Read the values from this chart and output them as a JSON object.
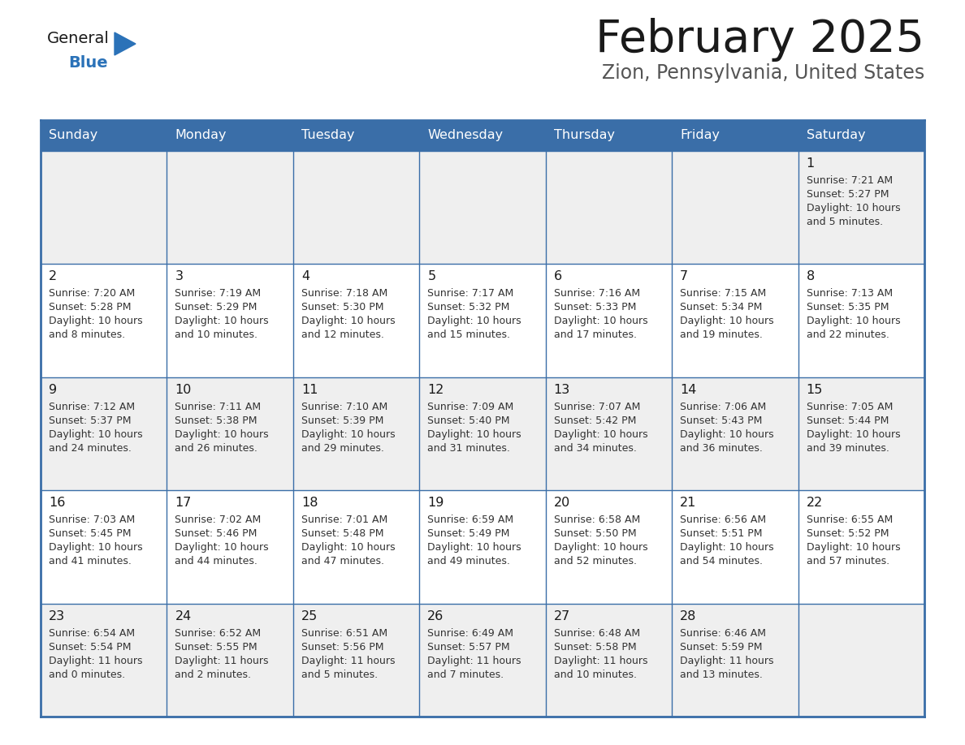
{
  "title": "February 2025",
  "subtitle": "Zion, Pennsylvania, United States",
  "days_of_week": [
    "Sunday",
    "Monday",
    "Tuesday",
    "Wednesday",
    "Thursday",
    "Friday",
    "Saturday"
  ],
  "header_bg": "#3a6ea8",
  "header_text": "#ffffff",
  "cell_bg": "#efefef",
  "cell_bg_alt": "#ffffff",
  "cell_border": "#3a6ea8",
  "cell_inner_border": "#3a6ea8",
  "title_color": "#1a1a1a",
  "subtitle_color": "#555555",
  "day_num_color": "#1a1a1a",
  "cell_text_color": "#333333",
  "logo_general_color": "#1a1a1a",
  "logo_blue_color": "#2b72b8",
  "weeks": [
    [
      {
        "day": null,
        "text": ""
      },
      {
        "day": null,
        "text": ""
      },
      {
        "day": null,
        "text": ""
      },
      {
        "day": null,
        "text": ""
      },
      {
        "day": null,
        "text": ""
      },
      {
        "day": null,
        "text": ""
      },
      {
        "day": 1,
        "sunrise": "Sunrise: 7:21 AM",
        "sunset": "Sunset: 5:27 PM",
        "daylight": "Daylight: 10 hours",
        "daylight2": "and 5 minutes."
      }
    ],
    [
      {
        "day": 2,
        "sunrise": "Sunrise: 7:20 AM",
        "sunset": "Sunset: 5:28 PM",
        "daylight": "Daylight: 10 hours",
        "daylight2": "and 8 minutes."
      },
      {
        "day": 3,
        "sunrise": "Sunrise: 7:19 AM",
        "sunset": "Sunset: 5:29 PM",
        "daylight": "Daylight: 10 hours",
        "daylight2": "and 10 minutes."
      },
      {
        "day": 4,
        "sunrise": "Sunrise: 7:18 AM",
        "sunset": "Sunset: 5:30 PM",
        "daylight": "Daylight: 10 hours",
        "daylight2": "and 12 minutes."
      },
      {
        "day": 5,
        "sunrise": "Sunrise: 7:17 AM",
        "sunset": "Sunset: 5:32 PM",
        "daylight": "Daylight: 10 hours",
        "daylight2": "and 15 minutes."
      },
      {
        "day": 6,
        "sunrise": "Sunrise: 7:16 AM",
        "sunset": "Sunset: 5:33 PM",
        "daylight": "Daylight: 10 hours",
        "daylight2": "and 17 minutes."
      },
      {
        "day": 7,
        "sunrise": "Sunrise: 7:15 AM",
        "sunset": "Sunset: 5:34 PM",
        "daylight": "Daylight: 10 hours",
        "daylight2": "and 19 minutes."
      },
      {
        "day": 8,
        "sunrise": "Sunrise: 7:13 AM",
        "sunset": "Sunset: 5:35 PM",
        "daylight": "Daylight: 10 hours",
        "daylight2": "and 22 minutes."
      }
    ],
    [
      {
        "day": 9,
        "sunrise": "Sunrise: 7:12 AM",
        "sunset": "Sunset: 5:37 PM",
        "daylight": "Daylight: 10 hours",
        "daylight2": "and 24 minutes."
      },
      {
        "day": 10,
        "sunrise": "Sunrise: 7:11 AM",
        "sunset": "Sunset: 5:38 PM",
        "daylight": "Daylight: 10 hours",
        "daylight2": "and 26 minutes."
      },
      {
        "day": 11,
        "sunrise": "Sunrise: 7:10 AM",
        "sunset": "Sunset: 5:39 PM",
        "daylight": "Daylight: 10 hours",
        "daylight2": "and 29 minutes."
      },
      {
        "day": 12,
        "sunrise": "Sunrise: 7:09 AM",
        "sunset": "Sunset: 5:40 PM",
        "daylight": "Daylight: 10 hours",
        "daylight2": "and 31 minutes."
      },
      {
        "day": 13,
        "sunrise": "Sunrise: 7:07 AM",
        "sunset": "Sunset: 5:42 PM",
        "daylight": "Daylight: 10 hours",
        "daylight2": "and 34 minutes."
      },
      {
        "day": 14,
        "sunrise": "Sunrise: 7:06 AM",
        "sunset": "Sunset: 5:43 PM",
        "daylight": "Daylight: 10 hours",
        "daylight2": "and 36 minutes."
      },
      {
        "day": 15,
        "sunrise": "Sunrise: 7:05 AM",
        "sunset": "Sunset: 5:44 PM",
        "daylight": "Daylight: 10 hours",
        "daylight2": "and 39 minutes."
      }
    ],
    [
      {
        "day": 16,
        "sunrise": "Sunrise: 7:03 AM",
        "sunset": "Sunset: 5:45 PM",
        "daylight": "Daylight: 10 hours",
        "daylight2": "and 41 minutes."
      },
      {
        "day": 17,
        "sunrise": "Sunrise: 7:02 AM",
        "sunset": "Sunset: 5:46 PM",
        "daylight": "Daylight: 10 hours",
        "daylight2": "and 44 minutes."
      },
      {
        "day": 18,
        "sunrise": "Sunrise: 7:01 AM",
        "sunset": "Sunset: 5:48 PM",
        "daylight": "Daylight: 10 hours",
        "daylight2": "and 47 minutes."
      },
      {
        "day": 19,
        "sunrise": "Sunrise: 6:59 AM",
        "sunset": "Sunset: 5:49 PM",
        "daylight": "Daylight: 10 hours",
        "daylight2": "and 49 minutes."
      },
      {
        "day": 20,
        "sunrise": "Sunrise: 6:58 AM",
        "sunset": "Sunset: 5:50 PM",
        "daylight": "Daylight: 10 hours",
        "daylight2": "and 52 minutes."
      },
      {
        "day": 21,
        "sunrise": "Sunrise: 6:56 AM",
        "sunset": "Sunset: 5:51 PM",
        "daylight": "Daylight: 10 hours",
        "daylight2": "and 54 minutes."
      },
      {
        "day": 22,
        "sunrise": "Sunrise: 6:55 AM",
        "sunset": "Sunset: 5:52 PM",
        "daylight": "Daylight: 10 hours",
        "daylight2": "and 57 minutes."
      }
    ],
    [
      {
        "day": 23,
        "sunrise": "Sunrise: 6:54 AM",
        "sunset": "Sunset: 5:54 PM",
        "daylight": "Daylight: 11 hours",
        "daylight2": "and 0 minutes."
      },
      {
        "day": 24,
        "sunrise": "Sunrise: 6:52 AM",
        "sunset": "Sunset: 5:55 PM",
        "daylight": "Daylight: 11 hours",
        "daylight2": "and 2 minutes."
      },
      {
        "day": 25,
        "sunrise": "Sunrise: 6:51 AM",
        "sunset": "Sunset: 5:56 PM",
        "daylight": "Daylight: 11 hours",
        "daylight2": "and 5 minutes."
      },
      {
        "day": 26,
        "sunrise": "Sunrise: 6:49 AM",
        "sunset": "Sunset: 5:57 PM",
        "daylight": "Daylight: 11 hours",
        "daylight2": "and 7 minutes."
      },
      {
        "day": 27,
        "sunrise": "Sunrise: 6:48 AM",
        "sunset": "Sunset: 5:58 PM",
        "daylight": "Daylight: 11 hours",
        "daylight2": "and 10 minutes."
      },
      {
        "day": 28,
        "sunrise": "Sunrise: 6:46 AM",
        "sunset": "Sunset: 5:59 PM",
        "daylight": "Daylight: 11 hours",
        "daylight2": "and 13 minutes."
      },
      {
        "day": null,
        "sunrise": "",
        "sunset": "",
        "daylight": "",
        "daylight2": ""
      }
    ]
  ]
}
